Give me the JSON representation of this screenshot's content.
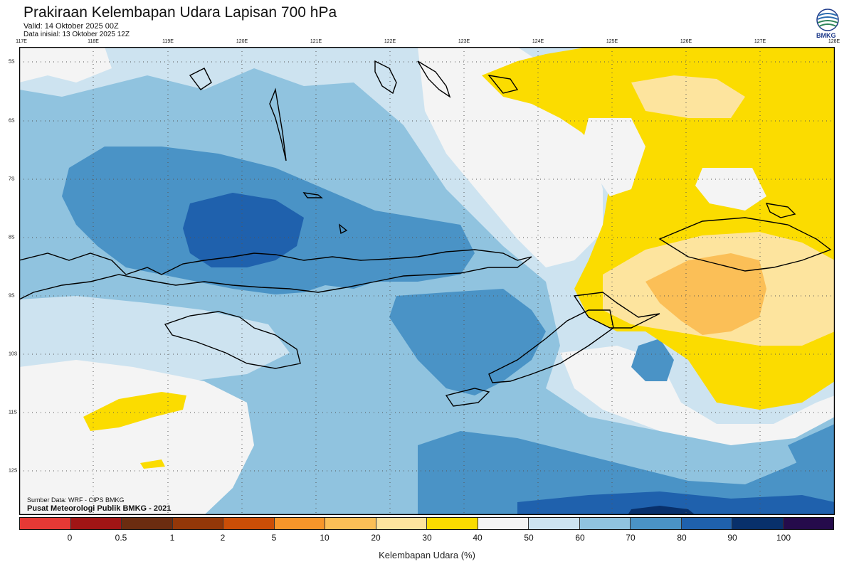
{
  "header": {
    "title": "Prakiraan Kelembapan Udara Lapisan 700 hPa",
    "valid": "Valid: 14 Oktober 2025 00Z",
    "initial": "Data inisial: 13 Oktober 2025 12Z"
  },
  "logo": {
    "text": "BMKG"
  },
  "axes": {
    "lon_labels": [
      "117E",
      "118E",
      "119E",
      "120E",
      "121E",
      "122E",
      "123E",
      "124E",
      "125E",
      "126E",
      "127E",
      "128E"
    ],
    "lat_labels": [
      "5S",
      "6S",
      "7S",
      "8S",
      "9S",
      "10S",
      "11S",
      "12S"
    ]
  },
  "footer": {
    "source": "Sumber Data: WRF - CIPS BMKG",
    "credit": "Pusat Meteorologi Publik BMKG - 2021"
  },
  "colorbar": {
    "label": "Kelembapan Udara (%)",
    "colors": [
      "#e53935",
      "#a11515",
      "#6b2c10",
      "#933708",
      "#cb4e07",
      "#f7962a",
      "#fbbf57",
      "#fde49e",
      "#fbdc00",
      "#f4f4f4",
      "#cde3f0",
      "#90c3df",
      "#4a93c6",
      "#1f61ad",
      "#08306b",
      "#250b4b"
    ],
    "ticks": [
      "0",
      "0.5",
      "1",
      "2",
      "5",
      "10",
      "20",
      "30",
      "40",
      "50",
      "60",
      "70",
      "80",
      "90",
      "100"
    ]
  },
  "legend_colors": {
    "yellow_40_50": "#fbdc00",
    "light_orange_30_40": "#fde49e",
    "orange_20_30": "#fbbf57",
    "white_50_60": "#f4f4f4",
    "pale_blue_60_70": "#cde3f0",
    "light_blue_70_80": "#90c3df",
    "mid_blue_80_90": "#4a93c6",
    "dark_blue_90_100": "#1f61ad",
    "navy_100": "#08306b"
  }
}
